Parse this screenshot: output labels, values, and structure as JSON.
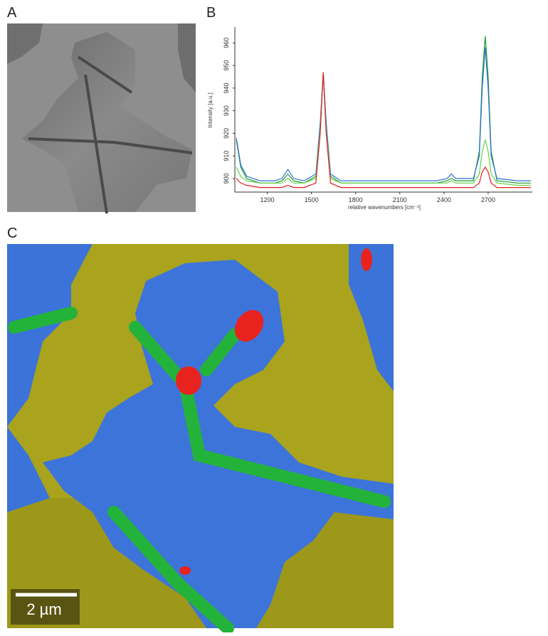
{
  "panel_labels": [
    "A",
    "B",
    "C"
  ],
  "scale_bar": "2 µm",
  "chart_data": {
    "type": "line",
    "xlabel": "relative wavenumbers [cm⁻¹]",
    "ylabel": "Intensity [a.u.]",
    "x": [
      990,
      1020,
      1060,
      1150,
      1250,
      1300,
      1340,
      1380,
      1450,
      1530,
      1560,
      1580,
      1600,
      1630,
      1700,
      2000,
      2350,
      2420,
      2450,
      2480,
      2600,
      2640,
      2660,
      2680,
      2700,
      2720,
      2760,
      2900,
      2990
    ],
    "series": [
      {
        "color": "#1f9a2a",
        "values": [
          917,
          905,
          900,
          898,
          898,
          899,
          902,
          899,
          898,
          901,
          924,
          947,
          924,
          901,
          898,
          898,
          898,
          899,
          900,
          899,
          899,
          912,
          945,
          963,
          945,
          912,
          899,
          898,
          898
        ]
      },
      {
        "color": "#2f6fd6",
        "values": [
          918,
          906,
          901,
          899,
          899,
          900,
          904,
          900,
          899,
          902,
          925,
          947,
          925,
          902,
          899,
          899,
          899,
          900,
          902,
          900,
          900,
          910,
          940,
          958,
          940,
          910,
          900,
          899,
          899
        ]
      },
      {
        "color": "#5fd34a",
        "values": [
          905,
          901,
          899,
          898,
          898,
          898,
          900,
          898,
          898,
          900,
          922,
          947,
          922,
          900,
          898,
          898,
          898,
          898,
          899,
          898,
          898,
          902,
          912,
          917,
          912,
          902,
          898,
          897,
          897
        ]
      },
      {
        "color": "#e02020",
        "values": [
          900,
          898,
          897,
          896,
          896,
          896,
          897,
          896,
          896,
          898,
          920,
          947,
          920,
          898,
          896,
          896,
          896,
          896,
          896,
          896,
          896,
          898,
          903,
          905,
          903,
          898,
          896,
          896,
          896
        ]
      }
    ],
    "xlim": [
      980,
      3000
    ],
    "ylim": [
      894,
      967
    ],
    "xticks": [
      1200,
      1500,
      1800,
      2100,
      2400,
      2700
    ],
    "yticks": [
      900,
      910,
      920,
      930,
      940,
      950,
      960
    ]
  }
}
